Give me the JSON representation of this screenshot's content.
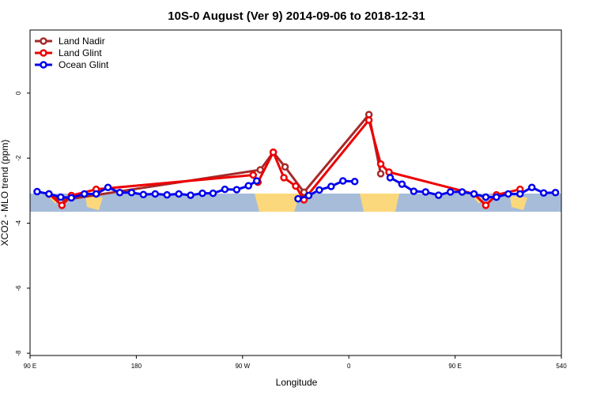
{
  "chart_data": {
    "type": "line",
    "title": "10S-0 August (Ver 9)   2014-09-06 to 2018-12-31",
    "x_label": "Longitude",
    "y_label": "XCO2 - MLO trend (ppm)",
    "xlim": [
      90,
      540
    ],
    "xticks": [
      {
        "value": 90,
        "label": "90 E"
      },
      180,
      {
        "value": 270,
        "label": "90 W"
      },
      {
        "value": 360,
        "label": "0"
      },
      {
        "value": 450,
        "label": "90 E"
      },
      540
    ],
    "ylim": [
      -8.07,
      1.94
    ],
    "yticks": [
      -8,
      -6,
      -4,
      -2,
      0
    ],
    "legend": "top-left",
    "series": [
      {
        "name": "Land Nadir",
        "color": "#a52a2a",
        "x": [
          106,
          116,
          285,
          296,
          306,
          322,
          377,
          387
        ],
        "values": [
          -3.1,
          -3.3,
          -2.36,
          -1.82,
          -2.27,
          -3.05,
          -0.66,
          -2.48
        ]
      },
      {
        "name": "Land Glint",
        "color": "#ee0000",
        "x": [
          106,
          117,
          125,
          146,
          279,
          283,
          296,
          305,
          315,
          322,
          377,
          387,
          394,
          466,
          476,
          485,
          505
        ],
        "values": [
          -3.1,
          -3.45,
          -3.15,
          -2.96,
          -2.52,
          -2.74,
          -1.82,
          -2.6,
          -2.86,
          -3.28,
          -0.83,
          -2.18,
          -2.43,
          -3.1,
          -3.45,
          -3.13,
          -2.96
        ]
      },
      {
        "name": "Ocean Glint",
        "color": "#0000ee",
        "x": [
          96,
          106,
          116,
          125,
          136,
          146,
          156,
          166,
          176,
          186,
          196,
          206,
          216,
          226,
          236,
          245,
          255,
          265,
          275,
          282,
          300,
          317,
          326,
          335,
          345,
          355,
          365,
          380,
          395,
          405,
          415,
          425,
          436,
          446,
          456,
          466,
          476,
          485,
          495,
          505,
          515,
          525,
          535
        ],
        "values": [
          -3.03,
          -3.1,
          -3.2,
          -3.22,
          -3.1,
          -3.1,
          -2.9,
          -3.06,
          -3.06,
          -3.12,
          -3.1,
          -3.13,
          -3.1,
          -3.14,
          -3.08,
          -3.08,
          -2.96,
          -2.97,
          -2.85,
          -2.7,
          null,
          -3.25,
          -3.15,
          -2.98,
          -2.87,
          -2.7,
          -2.72,
          null,
          -2.6,
          -2.8,
          -3.02,
          -3.04,
          -3.14,
          -3.04,
          -3.04,
          -3.1,
          -3.2,
          -3.2,
          -3.1,
          -3.1,
          -2.9,
          -3.07,
          -3.06
        ]
      }
    ]
  }
}
